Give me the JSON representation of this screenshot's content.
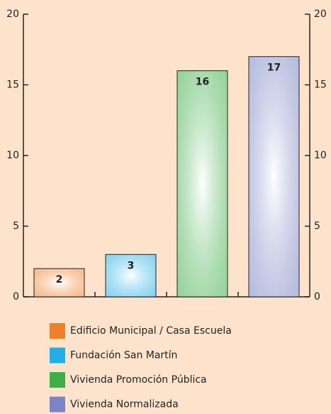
{
  "chart_data": {
    "type": "bar",
    "categories": [
      "Edificio Municipal / Casa Escuela",
      "Fundación San Martín",
      "Vivienda Promoción Pública",
      "Vivienda Normalizada"
    ],
    "values": [
      2,
      3,
      16,
      17
    ],
    "colors": [
      "#f07f2a",
      "#22aee6",
      "#3fae49",
      "#7b84c4"
    ],
    "ylim": [
      0,
      20
    ],
    "yticks": [
      0,
      5,
      10,
      15,
      20
    ],
    "y2lim": [
      0,
      20
    ],
    "y2ticks": [
      0,
      5,
      10,
      15,
      20
    ],
    "legend": "bottom"
  }
}
